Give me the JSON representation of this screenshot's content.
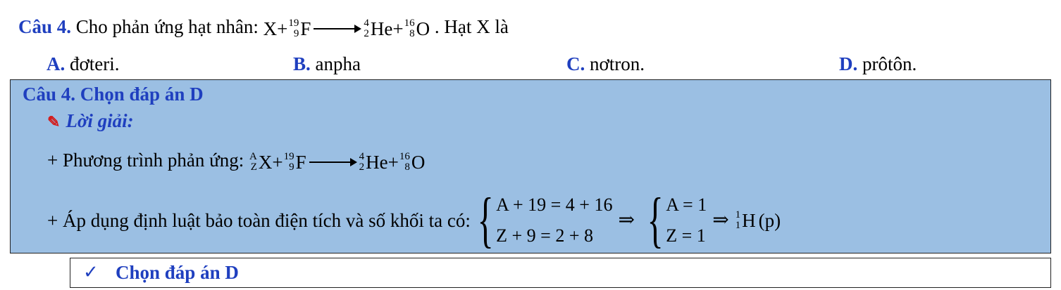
{
  "question": {
    "label": "Câu 4.",
    "prefix": "Cho phản ứng hạt nhân:",
    "reactant1": "X",
    "plus": "+",
    "reactant2_mass": "19",
    "reactant2_atomic": "9",
    "reactant2_symbol": "F",
    "product1_mass": "4",
    "product1_atomic": "2",
    "product1_symbol": "He",
    "product2_mass": "16",
    "product2_atomic": "8",
    "product2_symbol": "O",
    "suffix": ". Hạt X là"
  },
  "options": [
    {
      "letter": "A.",
      "text": "đơteri."
    },
    {
      "letter": "B.",
      "text": "anpha"
    },
    {
      "letter": "C.",
      "text": "nơtron."
    },
    {
      "letter": "D.",
      "text": "prôtôn."
    }
  ],
  "solution": {
    "title": "Câu 4. Chọn đáp án D",
    "subtitle": "Lời giải:",
    "step1_text": "+ Phương trình phản ứng:",
    "step1_x_mass": "A",
    "step1_x_atomic": "Z",
    "step2_text": "+ Áp dụng định luật bảo toàn điện tích và số khối ta có:",
    "eq1a": "A + 19 = 4 + 16",
    "eq1b": "Z + 9 = 2 + 8",
    "eq2a": "A = 1",
    "eq2b": "Z = 1",
    "implies": "⇒",
    "result_mass": "1",
    "result_atomic": "1",
    "result_symbol": "H",
    "result_paren": "(p)"
  },
  "final": {
    "text": "Chọn đáp án D"
  }
}
